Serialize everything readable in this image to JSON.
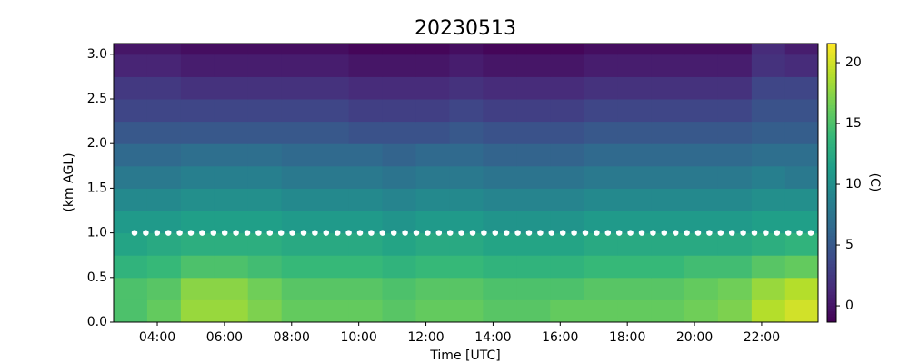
{
  "chart_data": {
    "type": "heatmap",
    "title": "20230513",
    "xlabel": "Time [UTC]",
    "ylabel": "(km AGL)",
    "colorbar_label": "(C)",
    "colormap": "viridis",
    "xlim": [
      2.7,
      23.68
    ],
    "ylim": [
      0,
      3.12
    ],
    "xticks": [
      {
        "value": 4,
        "label": "04:00"
      },
      {
        "value": 6,
        "label": "06:00"
      },
      {
        "value": 8,
        "label": "08:00"
      },
      {
        "value": 10,
        "label": "10:00"
      },
      {
        "value": 12,
        "label": "12:00"
      },
      {
        "value": 14,
        "label": "14:00"
      },
      {
        "value": 16,
        "label": "16:00"
      },
      {
        "value": 18,
        "label": "18:00"
      },
      {
        "value": 20,
        "label": "20:00"
      },
      {
        "value": 22,
        "label": "22:00"
      }
    ],
    "yticks": [
      {
        "value": 0,
        "label": "0.0"
      },
      0.5,
      {
        "value": 1,
        "label": "1.0"
      },
      1.5,
      {
        "value": 2,
        "label": "2.0"
      },
      2.5,
      {
        "value": 3,
        "label": "3.0"
      }
    ],
    "clim": [
      -1.34,
      21.57
    ],
    "cticks": [
      0,
      5,
      10,
      15,
      20
    ],
    "hline": 1.0,
    "x": [
      2.7,
      3.7,
      4.7,
      5.7,
      6.7,
      7.7,
      8.7,
      9.7,
      10.7,
      11.7,
      12.7,
      13.7,
      14.7,
      15.7,
      16.7,
      17.7,
      18.7,
      19.7,
      20.7,
      21.7,
      22.7
    ],
    "y": [
      0,
      0.25,
      0.5,
      0.75,
      1.0,
      1.25,
      1.5,
      1.75,
      2.0,
      2.25,
      2.5,
      2.75,
      3.0
    ],
    "z": [
      [
        15,
        16,
        18,
        18,
        17,
        16,
        16,
        16,
        15.5,
        16,
        16,
        15.5,
        15.5,
        16,
        16,
        16,
        16,
        16.5,
        17,
        19,
        20
      ],
      [
        15,
        15.5,
        17.5,
        17.5,
        16.5,
        15.5,
        15.5,
        15.5,
        15,
        15.5,
        15.5,
        15,
        15,
        15,
        15.5,
        15.5,
        15.5,
        16,
        16.5,
        18,
        19
      ],
      [
        13.5,
        14,
        15,
        15,
        14.5,
        14,
        14,
        14,
        13.5,
        14,
        14,
        13.5,
        13.5,
        13.5,
        14,
        14,
        14,
        14.5,
        14.5,
        15.5,
        16
      ],
      [
        12,
        12.5,
        13,
        13,
        13,
        12.5,
        12.5,
        12.5,
        12,
        12.5,
        12.5,
        12,
        12,
        12,
        12.5,
        12.5,
        12.5,
        12.5,
        12.5,
        13,
        13.5
      ],
      [
        11,
        11,
        11.5,
        11.5,
        11.5,
        11,
        11,
        11,
        10.5,
        11,
        11,
        10.5,
        10.5,
        10.5,
        11,
        11,
        11,
        11,
        11,
        11.5,
        11.5
      ],
      [
        9.5,
        9.5,
        10,
        10,
        10,
        9.5,
        9.5,
        9.5,
        9,
        9.5,
        9.5,
        9,
        9,
        9,
        9.5,
        9.5,
        9.5,
        9.5,
        9.5,
        10,
        10
      ],
      [
        8,
        8,
        8.5,
        8.5,
        8.5,
        8,
        8,
        8,
        7.5,
        8,
        8,
        7.5,
        7.5,
        7.5,
        8,
        8,
        8,
        8,
        8,
        8.5,
        8
      ],
      [
        6.5,
        6.5,
        7,
        7,
        7,
        6.5,
        6.5,
        6.5,
        6,
        6.5,
        6.5,
        6,
        6,
        6,
        6.5,
        6.5,
        6.5,
        6.5,
        6.5,
        7,
        7
      ],
      [
        5,
        5,
        5,
        5,
        5,
        5,
        5,
        4.5,
        4.5,
        4.5,
        5,
        4.5,
        4.5,
        4.5,
        5,
        5,
        5,
        5,
        5,
        5.5,
        5.5
      ],
      [
        3.5,
        3.5,
        3.5,
        3.5,
        3.5,
        3.5,
        3.5,
        3,
        3,
        3,
        3.5,
        3,
        3,
        3,
        3.5,
        3.5,
        3.5,
        3.5,
        3.5,
        4.5,
        4.5
      ],
      [
        2.5,
        2.5,
        2,
        2,
        2,
        2,
        2,
        1.5,
        1.5,
        1.5,
        2,
        1.5,
        1.5,
        1.5,
        2,
        2,
        2,
        2,
        2,
        3.5,
        3.5
      ],
      [
        1,
        1,
        0.5,
        0.5,
        0.5,
        0.5,
        0.5,
        0,
        0,
        0,
        0.5,
        0,
        0,
        0,
        0.5,
        0.5,
        0.5,
        0.5,
        0.5,
        2,
        1.5
      ],
      [
        0,
        0,
        -0.5,
        -0.5,
        -0.5,
        -0.5,
        -0.5,
        -1,
        -1,
        -1,
        -0.5,
        -1,
        -1,
        -1,
        -0.5,
        -0.5,
        -0.5,
        -0.5,
        -0.5,
        1.5,
        0.5
      ]
    ]
  }
}
